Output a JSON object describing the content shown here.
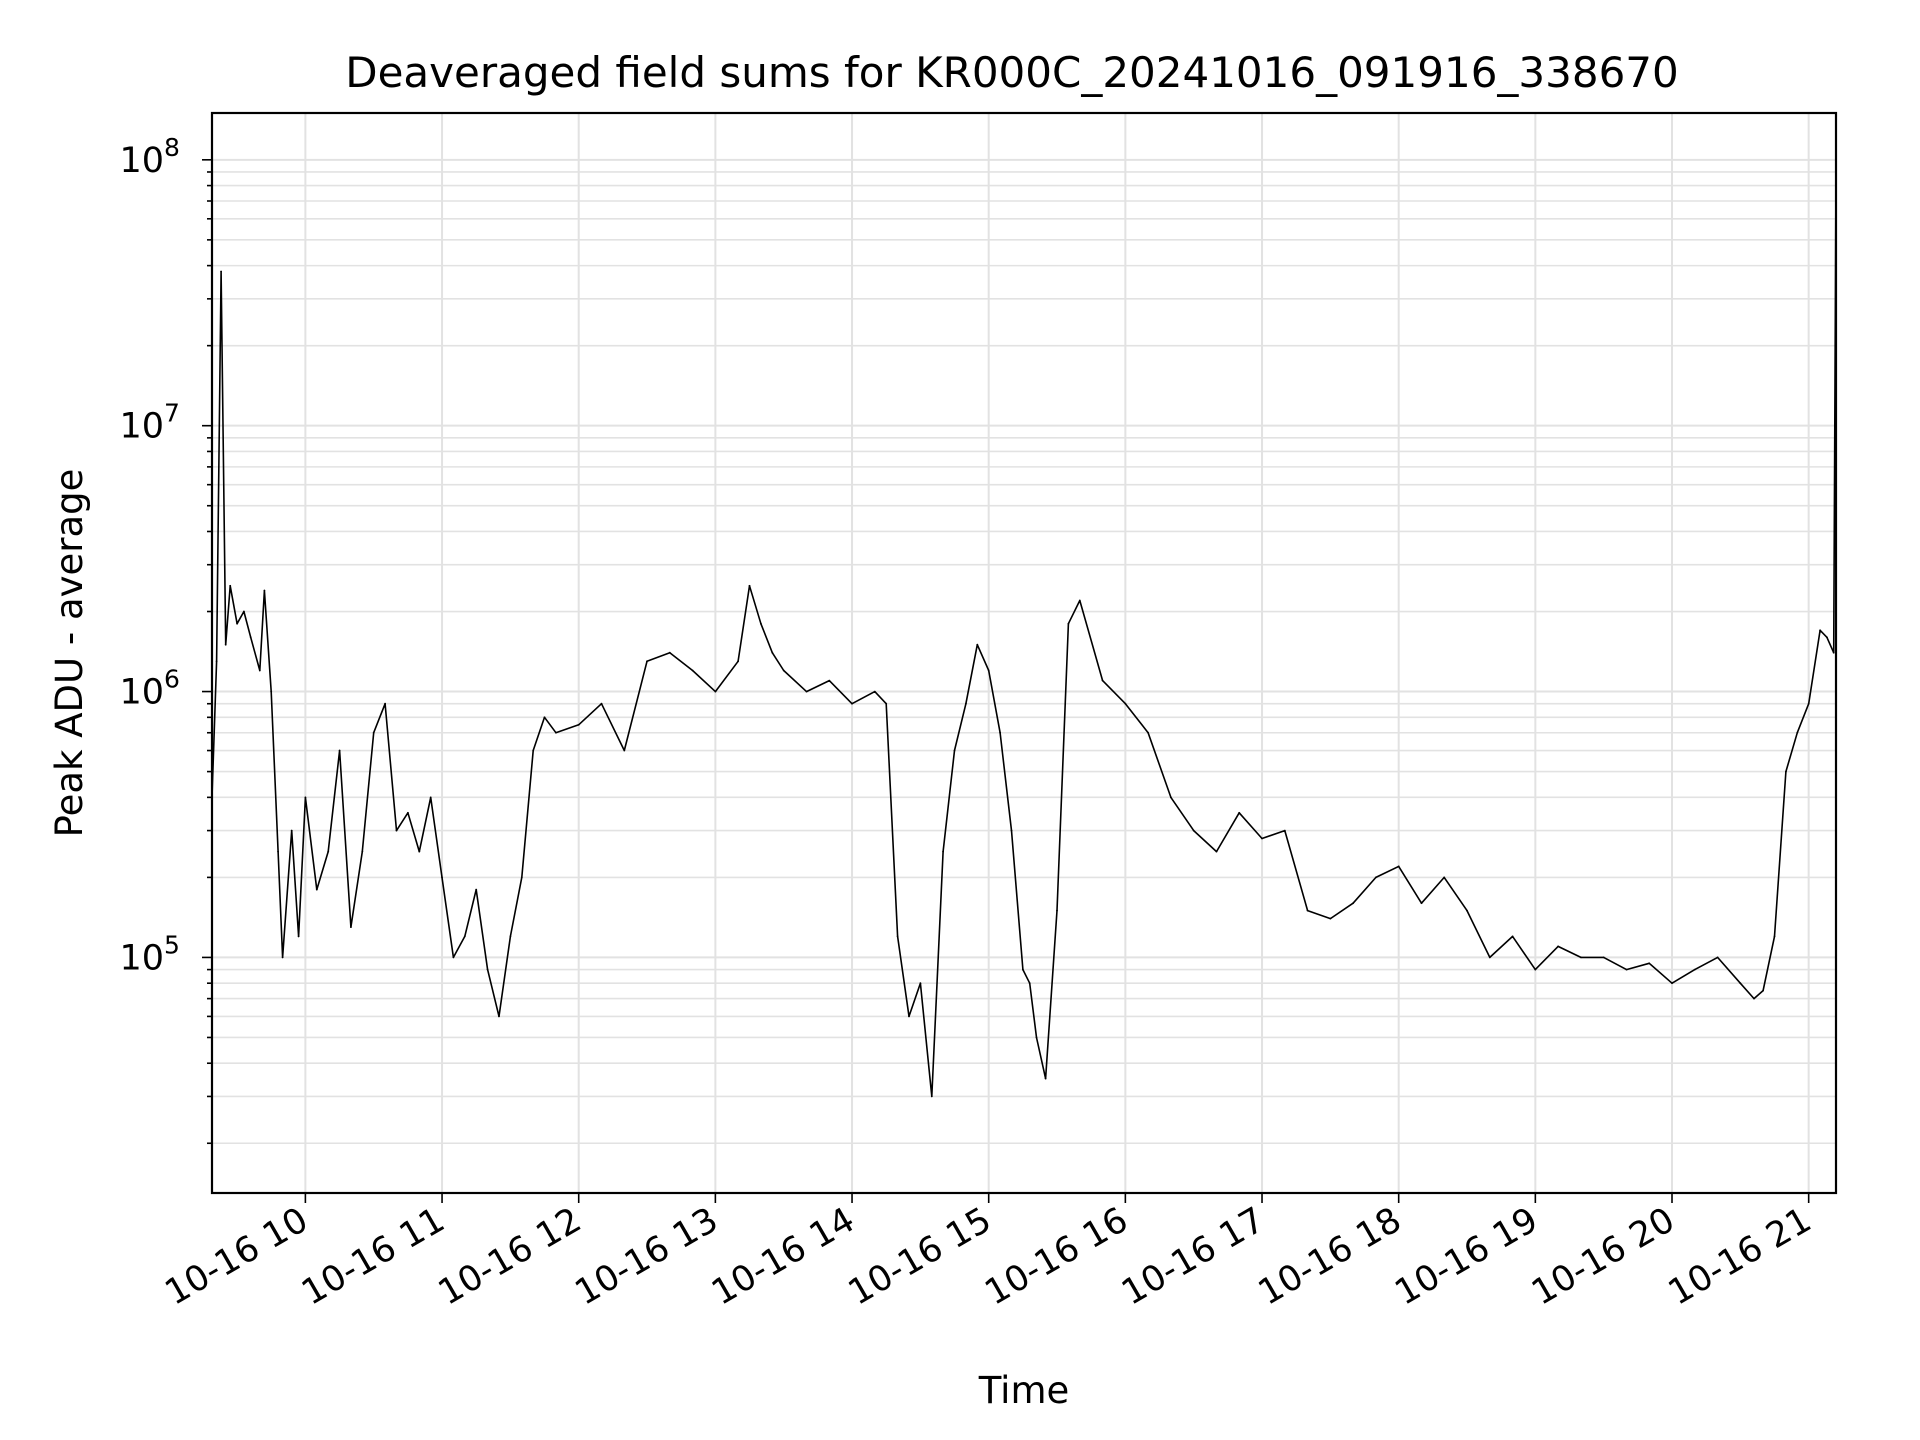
{
  "chart_data": {
    "type": "line",
    "title": "Deaveraged field sums for KR000C_20241016_091916_338670",
    "xlabel": "Time",
    "ylabel": "Peak ADU - average",
    "y_scale": "log",
    "ylim": [
      13000,
      150000000
    ],
    "xlim": [
      "2024-10-16 09:19",
      "2024-10-16 21:12"
    ],
    "x_tick_labels": [
      "10-16 10",
      "10-16 11",
      "10-16 12",
      "10-16 13",
      "10-16 14",
      "10-16 15",
      "10-16 16",
      "10-16 17",
      "10-16 18",
      "10-16 19",
      "10-16 20",
      "10-16 21"
    ],
    "y_tick_labels": [
      {
        "base": "10",
        "exp": "5"
      },
      {
        "base": "10",
        "exp": "6"
      },
      {
        "base": "10",
        "exp": "7"
      },
      {
        "base": "10",
        "exp": "8"
      }
    ],
    "grid": true,
    "legend": "none",
    "line_color": "#000000",
    "series": [
      {
        "x": [
          "09:19",
          "09:21",
          "09:23",
          "09:25",
          "09:27",
          "09:30",
          "09:33",
          "09:36",
          "09:40",
          "09:42",
          "09:45",
          "09:48",
          "09:50",
          "09:54",
          "09:57",
          "10:00",
          "10:05",
          "10:10",
          "10:15",
          "10:20",
          "10:25",
          "10:30",
          "10:35",
          "10:40",
          "10:45",
          "10:50",
          "10:55",
          "11:00",
          "11:05",
          "11:10",
          "11:15",
          "11:20",
          "11:25",
          "11:30",
          "11:35",
          "11:40",
          "11:45",
          "11:50",
          "12:00",
          "12:10",
          "12:20",
          "12:30",
          "12:40",
          "12:50",
          "13:00",
          "13:10",
          "13:15",
          "13:20",
          "13:25",
          "13:30",
          "13:40",
          "13:50",
          "14:00",
          "14:10",
          "14:15",
          "14:20",
          "14:25",
          "14:30",
          "14:35",
          "14:40",
          "14:45",
          "14:50",
          "14:55",
          "15:00",
          "15:05",
          "15:10",
          "15:15",
          "15:18",
          "15:21",
          "15:25",
          "15:30",
          "15:35",
          "15:40",
          "15:50",
          "16:00",
          "16:10",
          "16:20",
          "16:30",
          "16:40",
          "16:50",
          "17:00",
          "17:10",
          "17:20",
          "17:30",
          "17:40",
          "17:50",
          "18:00",
          "18:10",
          "18:20",
          "18:30",
          "18:40",
          "18:50",
          "19:00",
          "19:10",
          "19:20",
          "19:30",
          "19:40",
          "19:50",
          "20:00",
          "20:10",
          "20:20",
          "20:30",
          "20:36",
          "20:40",
          "20:45",
          "20:50",
          "20:55",
          "21:00",
          "21:05",
          "21:08",
          "21:11",
          "21:12"
        ],
        "values": [
          400000,
          1300000,
          38000000,
          1500000,
          2500000,
          1800000,
          2000000,
          1600000,
          1200000,
          2400000,
          1000000,
          250000,
          100000,
          300000,
          120000,
          400000,
          180000,
          250000,
          600000,
          130000,
          250000,
          700000,
          900000,
          300000,
          350000,
          250000,
          400000,
          200000,
          100000,
          120000,
          180000,
          90000,
          60000,
          120000,
          200000,
          600000,
          800000,
          700000,
          750000,
          900000,
          600000,
          1300000,
          1400000,
          1200000,
          1000000,
          1300000,
          2500000,
          1800000,
          1400000,
          1200000,
          1000000,
          1100000,
          900000,
          1000000,
          900000,
          120000,
          60000,
          80000,
          30000,
          250000,
          600000,
          900000,
          1500000,
          1200000,
          700000,
          300000,
          90000,
          80000,
          50000,
          35000,
          150000,
          1800000,
          2200000,
          1100000,
          900000,
          700000,
          400000,
          300000,
          250000,
          350000,
          280000,
          300000,
          150000,
          140000,
          160000,
          200000,
          220000,
          160000,
          200000,
          150000,
          100000,
          120000,
          90000,
          110000,
          100000,
          100000,
          90000,
          95000,
          80000,
          90000,
          100000,
          80000,
          70000,
          75000,
          120000,
          500000,
          700000,
          900000,
          1700000,
          1600000,
          1400000,
          90000000
        ]
      }
    ]
  }
}
